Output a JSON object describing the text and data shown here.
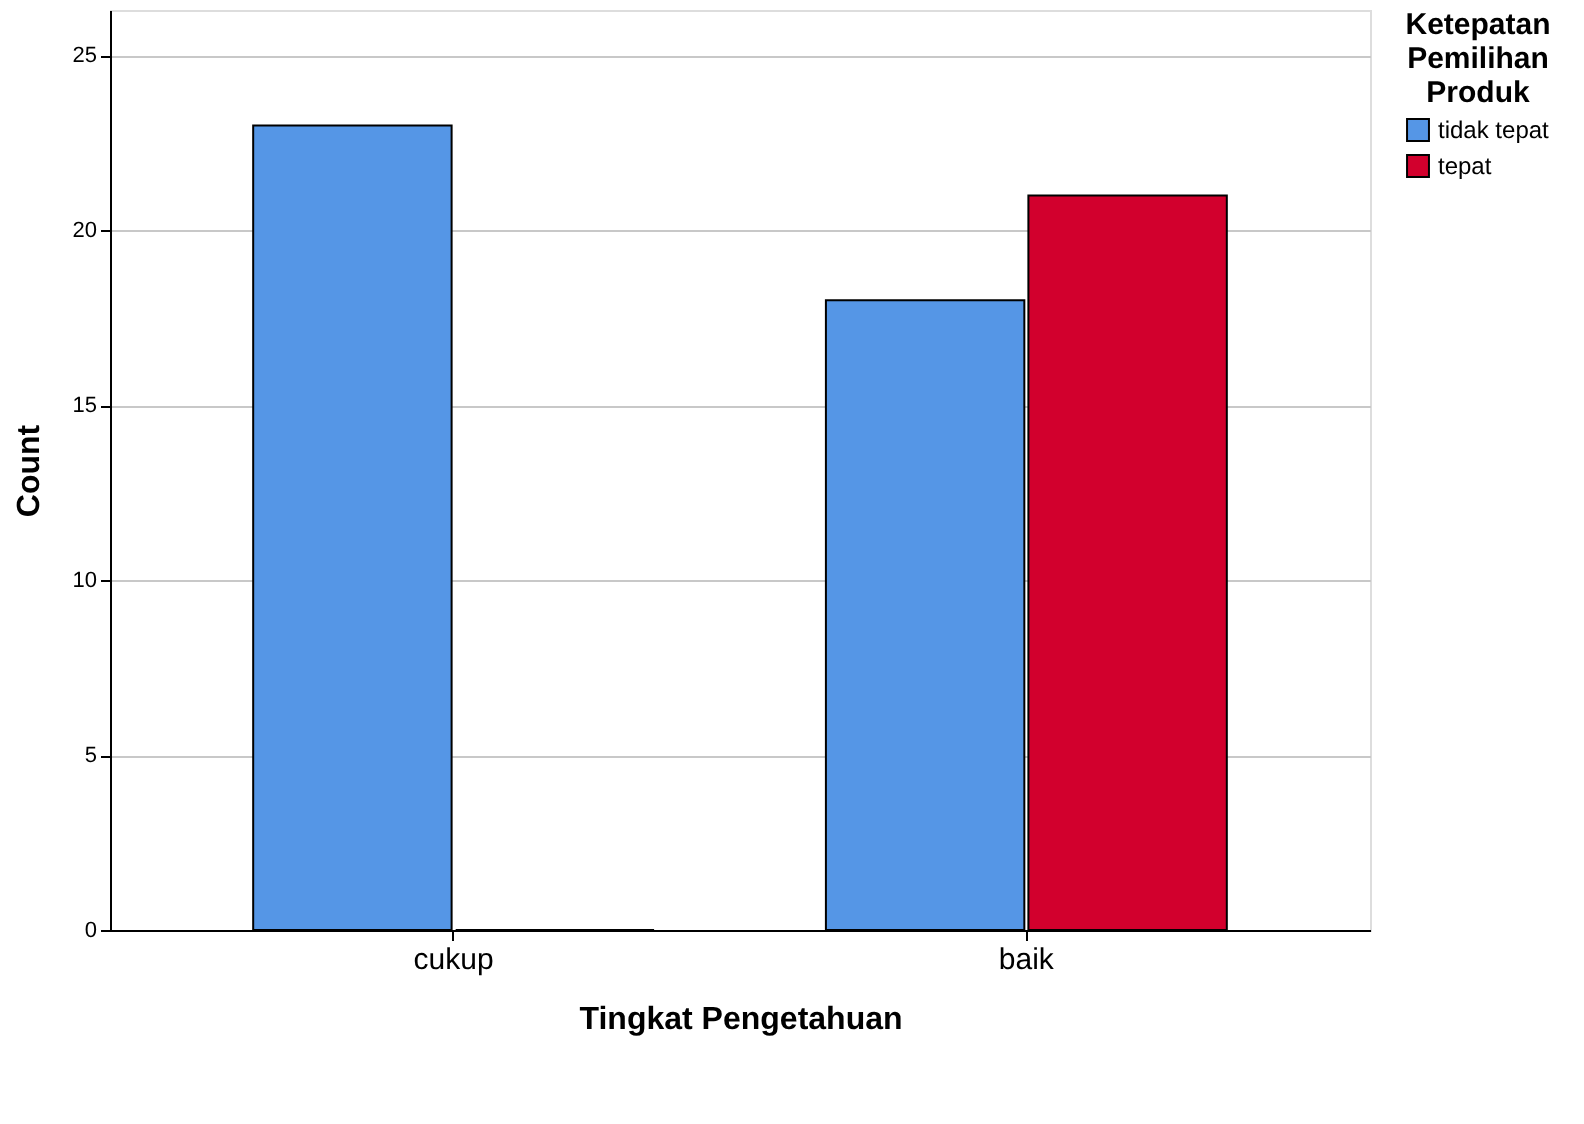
{
  "chart_data": {
    "type": "bar",
    "xlabel": "Tingkat Pengetahuan",
    "ylabel": "Count",
    "legend_title": "Ketepatan Pemilihan Produk",
    "categories": [
      "cukup",
      "baik"
    ],
    "series": [
      {
        "name": "tidak tepat",
        "color": "#5596e6",
        "values": [
          23,
          18
        ]
      },
      {
        "name": "tepat",
        "color": "#d2002d",
        "values": [
          0,
          21
        ]
      }
    ],
    "ylim": [
      0,
      26.3
    ],
    "yticks": [
      0,
      5,
      10,
      15,
      20,
      25
    ],
    "grid": "y",
    "legend": "top right"
  }
}
